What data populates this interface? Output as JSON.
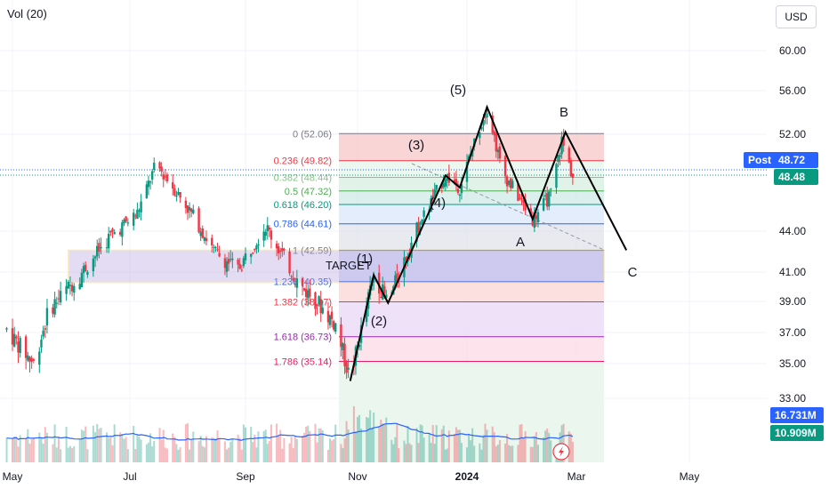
{
  "header": {
    "indicator": "Vol (20)",
    "currency": "USD"
  },
  "price_tags": {
    "post_label": "Post",
    "post_value": "48.72",
    "last_value": "48.48",
    "vol_ma": "16.731M",
    "vol_last": "10.909M"
  },
  "chart_data": {
    "type": "candlestick",
    "yaxis": {
      "ticks": [
        60,
        56,
        52,
        44,
        41,
        39,
        37,
        35,
        33
      ],
      "tick_labels": [
        "60.00",
        "56.00",
        "52.00",
        "44.00",
        "41.00",
        "39.00",
        "37.00",
        "35.00",
        "33.00"
      ]
    },
    "xaxis": {
      "labels": [
        "May",
        "Jul",
        "Sep",
        "Nov",
        "2024",
        "Mar",
        "May"
      ]
    },
    "fib_levels": [
      {
        "ratio": "0",
        "label": "0 (52.06)",
        "price": 52.06,
        "color": "#787b86"
      },
      {
        "ratio": "0.236",
        "label": "0.236 (49.82)",
        "price": 49.82,
        "color": "#f23645"
      },
      {
        "ratio": "0.382",
        "label": "0.382 (48.44)",
        "price": 48.44,
        "color": "#81c784"
      },
      {
        "ratio": "0.5",
        "label": "0.5 (47.32)",
        "price": 47.32,
        "color": "#4caf50"
      },
      {
        "ratio": "0.618",
        "label": "0.618 (46.20)",
        "price": 46.2,
        "color": "#089981"
      },
      {
        "ratio": "0.786",
        "label": "0.786 (44.61)",
        "price": 44.61,
        "color": "#2962ff"
      },
      {
        "ratio": "1",
        "label": "1 (42.59)",
        "price": 42.59,
        "color": "#787b86"
      },
      {
        "ratio": "1.236",
        "label": "1.236 (40.35)",
        "price": 40.35,
        "color": "#2962ff"
      },
      {
        "ratio": "1.382",
        "label": "1.382 (38.97)",
        "price": 38.97,
        "color": "#f23645"
      },
      {
        "ratio": "1.618",
        "label": "1.618 (36.73)",
        "price": 36.73,
        "color": "#9c27b0"
      },
      {
        "ratio": "1.786",
        "label": "1.786 (35.14)",
        "price": 35.14,
        "color": "#e91e63"
      }
    ],
    "annotations": {
      "target": "TARGET",
      "waves": [
        "(1)",
        "(2)",
        "(3)",
        "(4)",
        "(5)"
      ],
      "corrective": [
        "A",
        "B",
        "C"
      ]
    },
    "wave_points": [
      {
        "label": "start",
        "date": "2023-10-28",
        "price": 34.0
      },
      {
        "label": "(1)",
        "date": "2023-11-10",
        "price": 40.8
      },
      {
        "label": "(2)",
        "date": "2023-11-18",
        "price": 38.9
      },
      {
        "label": "(3)",
        "date": "2023-12-20",
        "price": 48.6
      },
      {
        "label": "(4)",
        "date": "2023-12-28",
        "price": 47.6
      },
      {
        "label": "(5)",
        "date": "2024-01-12",
        "price": 54.5
      },
      {
        "label": "A",
        "date": "2024-02-06",
        "price": 45.0
      },
      {
        "label": "B",
        "date": "2024-02-24",
        "price": 52.2
      },
      {
        "label": "C",
        "date": "2024-03-28",
        "price": 42.6
      }
    ],
    "support_zone": {
      "from": 40.3,
      "to": 42.6
    },
    "colors": {
      "up": "#089981",
      "down": "#f23645",
      "vol_ma": "#2962ff",
      "wave": "#000000"
    }
  }
}
